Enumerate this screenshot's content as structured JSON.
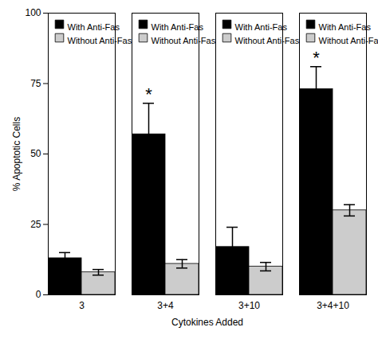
{
  "chart_data": {
    "type": "bar",
    "categories": [
      "3",
      "3+4",
      "3+10",
      "3+4+10"
    ],
    "series": [
      {
        "name": "With Anti-Fas",
        "color": "#000000",
        "values": [
          13,
          57,
          17,
          73
        ],
        "errors": [
          2,
          11,
          7,
          8
        ]
      },
      {
        "name": "Without Anti-Fas",
        "color": "#cccccc",
        "values": [
          8,
          11,
          10,
          30
        ],
        "errors": [
          1,
          1.5,
          1.5,
          2
        ]
      }
    ],
    "annotations": [
      {
        "text": "*",
        "category": "3+4",
        "series": "With Anti-Fas"
      },
      {
        "text": "*",
        "category": "3+4+10",
        "series": "With Anti-Fas"
      }
    ],
    "xlabel": "Cytokines Added",
    "ylabel": "% Apoptotic Cells",
    "ylim": [
      0,
      100
    ],
    "yticks": [
      0,
      25,
      50,
      75,
      100
    ],
    "legend": "upper left",
    "grid": false
  }
}
